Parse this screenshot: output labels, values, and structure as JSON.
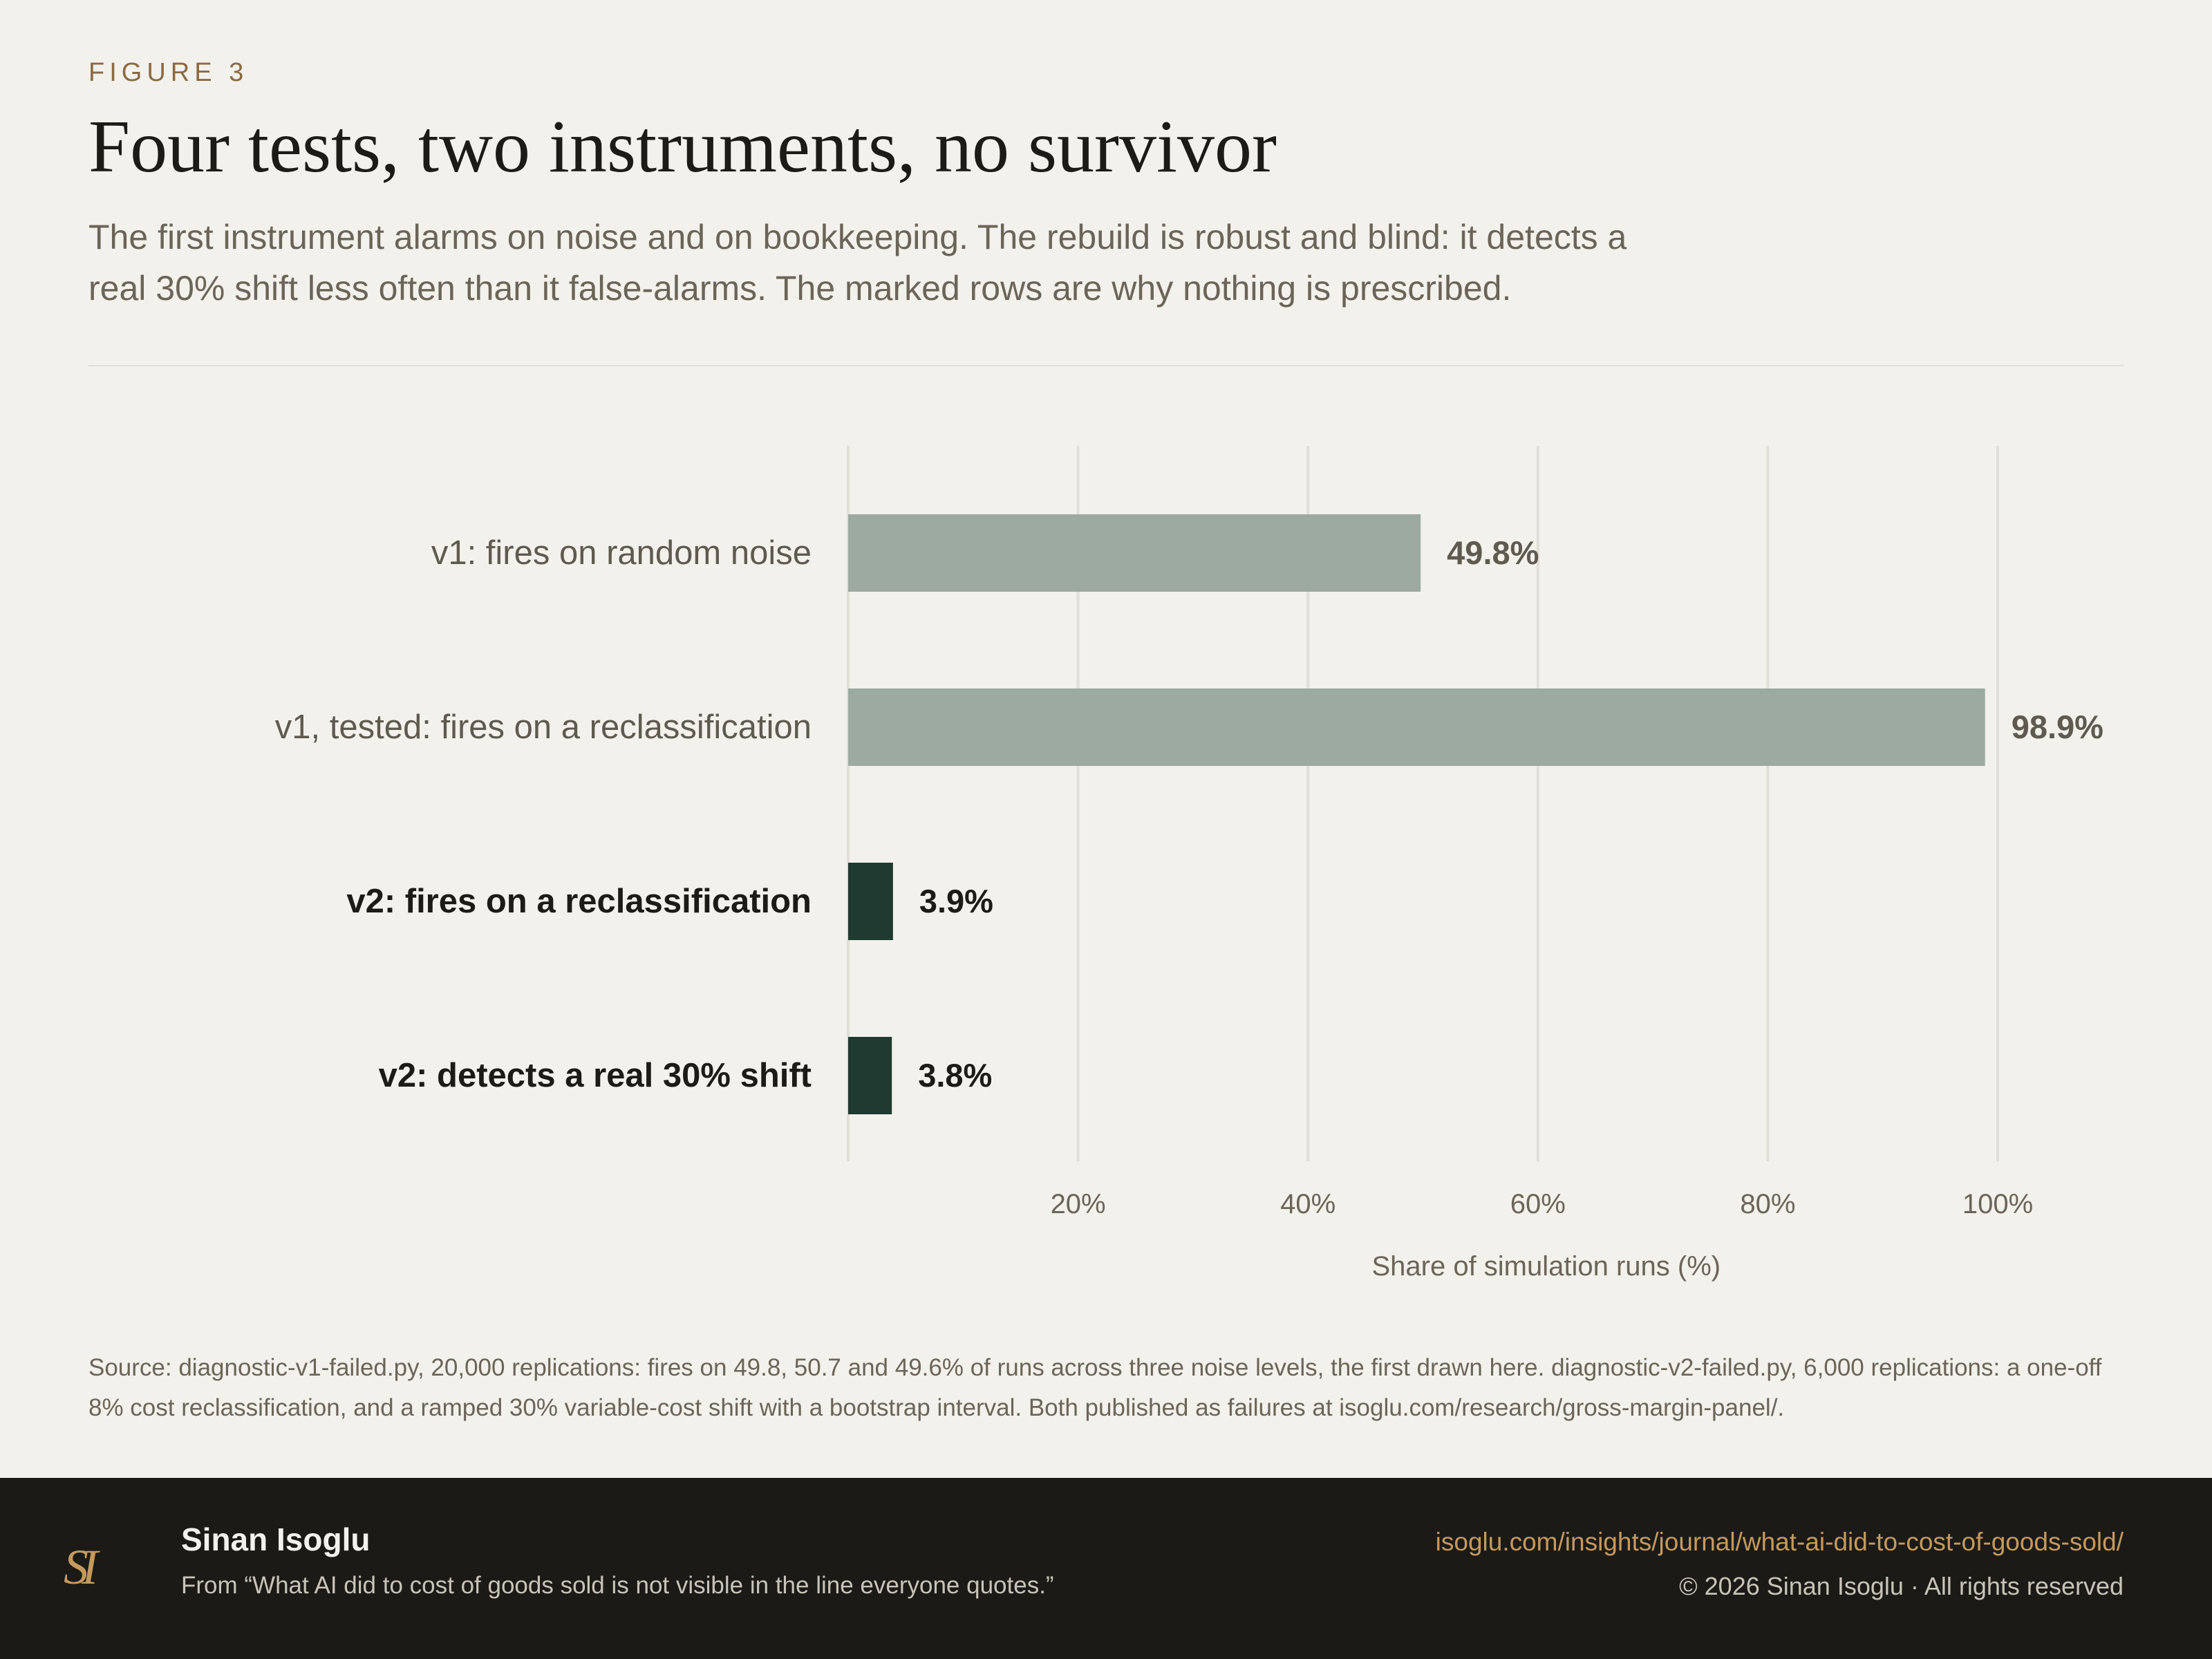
{
  "figure_label": "FIGURE 3",
  "title": "Four tests, two instruments, no survivor",
  "subtitle": "The first instrument alarms on noise and on bookkeeping. The rebuild is robust and blind: it detects a real 30% shift less often than it false-alarms. The marked rows are why nothing is prescribed.",
  "source": "Source: diagnostic-v1-failed.py, 20,000 replications: fires on 49.8, 50.7 and 49.6% of runs across three noise levels, the first drawn here. diagnostic-v2-failed.py, 6,000 replications: a one-off 8% cost reclassification, and a ramped 30% variable-cost shift with a bootstrap interval. Both published as failures at isoglu.com/research/gross-margin-panel/.",
  "footer": {
    "logo": "SI",
    "author": "Sinan Isoglu",
    "from": "From “What AI did to cost of goods sold is not visible in the line everyone quotes.”",
    "url": "isoglu.com/insights/journal/what-ai-did-to-cost-of-goods-sold/",
    "copyright": "© 2026 Sinan Isoglu · All rights reserved"
  },
  "colors": {
    "v1_bar": "#9caaa0",
    "v2_bar": "#1f3a30",
    "v1_label": "#5f5a50",
    "v2_label": "#1c1b18",
    "grid": "#e2dfd8",
    "tick": "#6b6458"
  },
  "chart_data": {
    "type": "bar",
    "orientation": "horizontal",
    "categories": [
      "v1: fires on random noise",
      "v1, tested: fires on a reclassification",
      "v2: fires on a reclassification",
      "v2: detects a real 30% shift"
    ],
    "values": [
      49.8,
      98.9,
      3.9,
      3.8
    ],
    "value_labels": [
      "49.8%",
      "98.9%",
      "3.9%",
      "3.8%"
    ],
    "emphasized": [
      false,
      false,
      true,
      true
    ],
    "xlabel": "Share of simulation runs (%)",
    "xlim": [
      0,
      100
    ],
    "xticks": [
      20,
      40,
      60,
      80,
      100
    ],
    "xtick_labels": [
      "20%",
      "40%",
      "60%",
      "80%",
      "100%"
    ],
    "grid": true
  }
}
